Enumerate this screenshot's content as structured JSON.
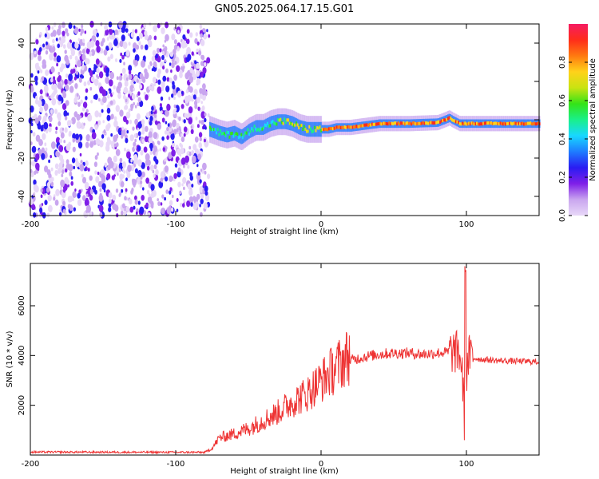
{
  "title": "GN05.2025.064.17.15.G01",
  "colors": {
    "snr_line": "#ee3333",
    "noise_purple": "#7a1ee6",
    "colormap": [
      "#e8d8f8",
      "#c9a6ef",
      "#7f1fe8",
      "#2a1cf2",
      "#1e7cff",
      "#18d8ff",
      "#19f08a",
      "#34e317",
      "#c9e312",
      "#ffd21a",
      "#ff7a10",
      "#ff2d1a",
      "#f51c62"
    ]
  },
  "chart_data": [
    {
      "type": "heatmap",
      "name": "spectrogram",
      "xlabel": "Height of straight line (km)",
      "ylabel": "Frequency (Hz)",
      "xlim": [
        -200,
        150
      ],
      "ylim": [
        -50,
        50
      ],
      "x_ticks": [
        -200,
        -100,
        0,
        100
      ],
      "y_ticks": [
        -40,
        -20,
        0,
        20,
        40
      ],
      "colorbar": {
        "label": "Normalized spectral amplitude",
        "range": [
          0,
          1
        ],
        "ticks": [
          "0.0",
          "0.2",
          "0.4",
          "0.6",
          "0.8"
        ]
      },
      "noise_region_x": [
        -200,
        -77
      ],
      "trace": {
        "x": [
          -77,
          -70,
          -65,
          -60,
          -55,
          -50,
          -45,
          -40,
          -35,
          -30,
          -25,
          -20,
          -15,
          -10,
          -5,
          0,
          5,
          10,
          20,
          30,
          40,
          60,
          80,
          85,
          88,
          90,
          95,
          100,
          110,
          120,
          130,
          150
        ],
        "y": [
          -5,
          -7,
          -8,
          -7,
          -9,
          -6,
          -4,
          -4,
          -2,
          -1,
          -1,
          -2,
          -4,
          -5,
          -5,
          -5,
          -5,
          -4,
          -4,
          -3,
          -2,
          -2,
          -1.5,
          0,
          1,
          0,
          -2,
          -2,
          -2,
          -2,
          -2,
          -2
        ]
      }
    },
    {
      "type": "line",
      "name": "snr",
      "xlabel": "Height of straight line (km)",
      "ylabel": "SNR (10 * v/v)",
      "xlim": [
        -200,
        150
      ],
      "ylim": [
        0,
        7700
      ],
      "x_ticks": [
        -200,
        -100,
        0,
        100
      ],
      "y_ticks": [
        2000,
        4000,
        6000
      ],
      "envelope": {
        "x": [
          -200,
          -80,
          -75,
          -70,
          -60,
          -50,
          -40,
          -30,
          -20,
          -10,
          0,
          10,
          20,
          30,
          40,
          50,
          60,
          70,
          80,
          90,
          95,
          97,
          98,
          99,
          100,
          102,
          105,
          110,
          120,
          130,
          140,
          150
        ],
        "y": [
          120,
          110,
          250,
          650,
          800,
          1000,
          1300,
          1600,
          2000,
          2300,
          2800,
          3300,
          3800,
          3950,
          4050,
          4100,
          4100,
          4050,
          4100,
          4150,
          4100,
          3500,
          2200,
          500,
          3200,
          4000,
          3900,
          3850,
          3800,
          3780,
          3760,
          3750
        ]
      }
    }
  ]
}
